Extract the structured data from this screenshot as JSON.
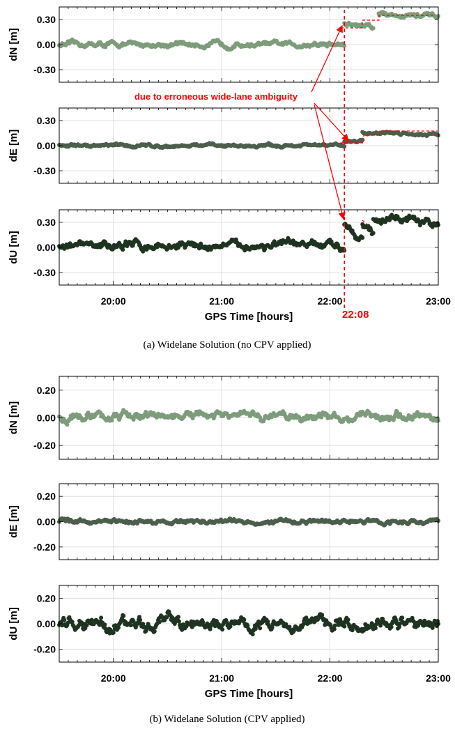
{
  "figure": {
    "caption_a": "(a)  Widelane Solution (no CPV applied)",
    "caption_b": "(b)  Widelane Solution (CPV applied)",
    "annotation": "due to erroneous wide-lane ambiguity",
    "event_label": "22:08"
  },
  "colors": {
    "dN": "#7e9c7c",
    "dE": "#4c5e4c",
    "dU": "#1e3320",
    "annotation": "#ff0000",
    "grid": "#d9d9d9"
  },
  "chart_data": [
    {
      "type": "scatter",
      "panel": "a-dN",
      "xlabel": "",
      "ylabel": "dN [m]",
      "xlim": [
        19.5,
        23.0
      ],
      "ylim": [
        -0.45,
        0.45
      ],
      "yticks": [
        "0.30",
        "0.00",
        "-0.30"
      ],
      "ytick_values": [
        0.3,
        0,
        -0.3
      ],
      "xticks": [
        "20:00",
        "21:00",
        "22:00",
        "23:00"
      ],
      "xtick_values": [
        20,
        21,
        22,
        23
      ],
      "show_xticklabels": false,
      "series": [
        {
          "color": "dN",
          "noise": 0.025,
          "segments": [
            {
              "x": [
                19.5,
                22.133
              ],
              "y": [
                0.0,
                0.0
              ]
            },
            {
              "x": [
                22.133,
                22.4
              ],
              "y": [
                0.24,
                0.23
              ]
            },
            {
              "x": [
                22.45,
                23.0
              ],
              "y": [
                0.37,
                0.33
              ]
            }
          ]
        }
      ]
    },
    {
      "type": "scatter",
      "panel": "a-dE",
      "xlabel": "",
      "ylabel": "dE [m]",
      "xlim": [
        19.5,
        23.0
      ],
      "ylim": [
        -0.45,
        0.45
      ],
      "yticks": [
        "0.30",
        "0.00",
        "-0.30"
      ],
      "ytick_values": [
        0.3,
        0,
        -0.3
      ],
      "xticks": [
        "20:00",
        "21:00",
        "22:00",
        "23:00"
      ],
      "xtick_values": [
        20,
        21,
        22,
        23
      ],
      "show_xticklabels": false,
      "series": [
        {
          "color": "dE",
          "noise": 0.015,
          "segments": [
            {
              "x": [
                19.5,
                22.133
              ],
              "y": [
                0.0,
                0.0
              ]
            },
            {
              "x": [
                22.133,
                22.3
              ],
              "y": [
                0.05,
                0.06
              ]
            },
            {
              "x": [
                22.3,
                23.0
              ],
              "y": [
                0.16,
                0.14
              ]
            }
          ]
        }
      ]
    },
    {
      "type": "scatter",
      "panel": "a-dU",
      "xlabel": "GPS Time [hours]",
      "ylabel": "dU [m]",
      "xlim": [
        19.5,
        23.0
      ],
      "ylim": [
        -0.45,
        0.45
      ],
      "yticks": [
        "0.30",
        "0.00",
        "-0.30"
      ],
      "ytick_values": [
        0.3,
        0,
        -0.3
      ],
      "xticks": [
        "20:00",
        "21:00",
        "22:00",
        "23:00"
      ],
      "xtick_values": [
        20,
        21,
        22,
        23
      ],
      "show_xticklabels": true,
      "series": [
        {
          "color": "dU",
          "noise": 0.04,
          "segments": [
            {
              "x": [
                19.5,
                22.133
              ],
              "y": [
                0.02,
                0.02
              ]
            },
            {
              "x": [
                22.133,
                22.3
              ],
              "y": [
                0.28,
                0.14
              ]
            },
            {
              "x": [
                22.3,
                22.4
              ],
              "y": [
                0.26,
                0.14
              ]
            },
            {
              "x": [
                22.4,
                22.55
              ],
              "y": [
                0.32,
                0.36
              ]
            },
            {
              "x": [
                22.55,
                23.0
              ],
              "y": [
                0.36,
                0.26
              ]
            }
          ]
        }
      ]
    },
    {
      "type": "scatter",
      "panel": "b-dN",
      "xlabel": "",
      "ylabel": "dN [m]",
      "xlim": [
        19.5,
        23.0
      ],
      "ylim": [
        -0.3,
        0.3
      ],
      "yticks": [
        "0.20",
        "0.00",
        "-0.20"
      ],
      "ytick_values": [
        0.2,
        0,
        -0.2
      ],
      "xticks": [
        "20:00",
        "21:00",
        "22:00",
        "23:00"
      ],
      "xtick_values": [
        20,
        21,
        22,
        23
      ],
      "show_xticklabels": false,
      "series": [
        {
          "color": "dN",
          "noise": 0.025,
          "segments": [
            {
              "x": [
                19.5,
                23.0
              ],
              "y": [
                0.01,
                0.01
              ]
            }
          ]
        }
      ]
    },
    {
      "type": "scatter",
      "panel": "b-dE",
      "xlabel": "",
      "ylabel": "dE [m]",
      "xlim": [
        19.5,
        23.0
      ],
      "ylim": [
        -0.3,
        0.3
      ],
      "yticks": [
        "0.20",
        "0.00",
        "-0.20"
      ],
      "ytick_values": [
        0.2,
        0,
        -0.2
      ],
      "xticks": [
        "20:00",
        "21:00",
        "22:00",
        "23:00"
      ],
      "xtick_values": [
        20,
        21,
        22,
        23
      ],
      "show_xticklabels": false,
      "series": [
        {
          "color": "dE",
          "noise": 0.015,
          "segments": [
            {
              "x": [
                19.5,
                23.0
              ],
              "y": [
                0.0,
                0.0
              ]
            }
          ]
        }
      ]
    },
    {
      "type": "scatter",
      "panel": "b-dU",
      "xlabel": "GPS Time [hours]",
      "ylabel": "dU [m]",
      "xlim": [
        19.5,
        23.0
      ],
      "ylim": [
        -0.3,
        0.3
      ],
      "yticks": [
        "0.20",
        "0.00",
        "-0.20"
      ],
      "ytick_values": [
        0.2,
        0,
        -0.2
      ],
      "xticks": [
        "20:00",
        "21:00",
        "22:00",
        "23:00"
      ],
      "xtick_values": [
        20,
        21,
        22,
        23
      ],
      "show_xticklabels": true,
      "series": [
        {
          "color": "dU",
          "noise": 0.04,
          "segments": [
            {
              "x": [
                19.5,
                23.0
              ],
              "y": [
                0.0,
                0.0
              ]
            }
          ]
        }
      ]
    }
  ]
}
